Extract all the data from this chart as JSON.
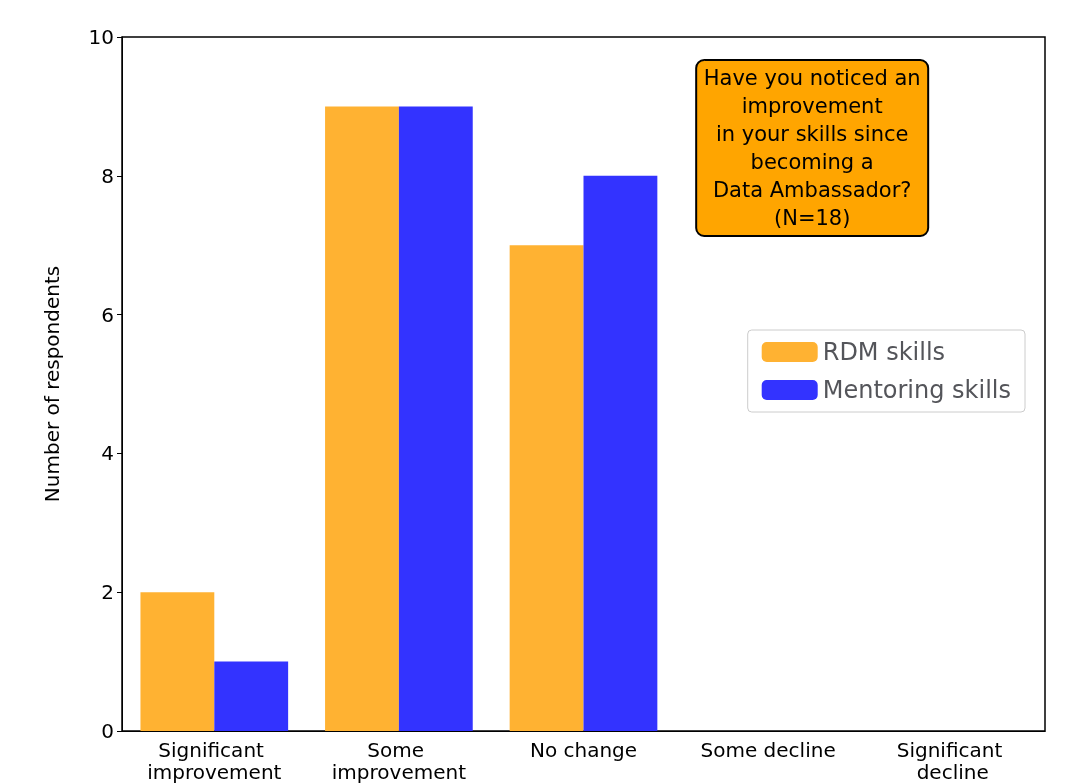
{
  "chart_data": {
    "type": "bar",
    "title": "Have you noticed an\nimprovement\nin your skills since\nbecoming a\nData Ambassador?\n(N=18)",
    "ylabel": "Number of respondents",
    "categories": [
      "Significant improvement",
      "Some improvement",
      "No change",
      "Some decline",
      "Significant decline"
    ],
    "series": [
      {
        "name": "RDM skills",
        "color": "#ffb232",
        "values": [
          2,
          9,
          7,
          0,
          0
        ]
      },
      {
        "name": "Mentoring skills",
        "color": "#3333ff",
        "values": [
          1,
          9,
          8,
          0,
          0
        ]
      }
    ],
    "ylim": [
      0,
      10
    ],
    "yticks": [
      0,
      2,
      4,
      6,
      8,
      10
    ],
    "grid": false,
    "legend": "center right"
  }
}
